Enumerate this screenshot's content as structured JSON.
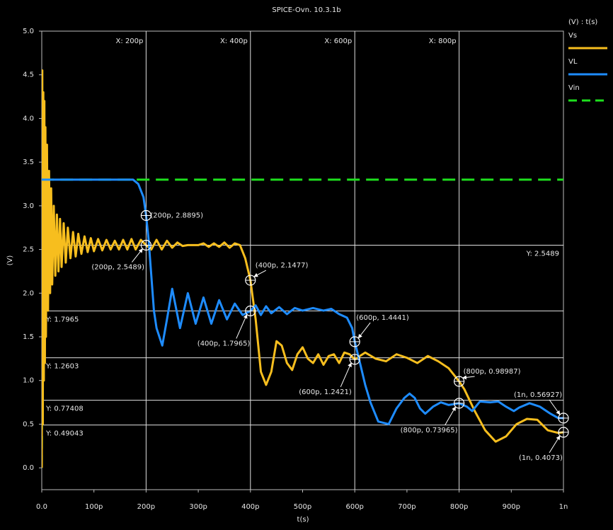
{
  "chart_data": {
    "type": "line",
    "title": "SPICE-Ovn. 10.3.1b",
    "x_label": "t(s)",
    "y_label": "(V)",
    "legend_title": "(V) : t(s)",
    "legend": "right",
    "xlim": [
      0,
      1e-09
    ],
    "ylim": [
      -0.25,
      5.0
    ],
    "xticks": [
      {
        "value": 0,
        "label": "0.0"
      },
      {
        "value": 1e-10,
        "label": "100p"
      },
      {
        "value": 2e-10,
        "label": "200p"
      },
      {
        "value": 3e-10,
        "label": "300p"
      },
      {
        "value": 4e-10,
        "label": "400p"
      },
      {
        "value": 5e-10,
        "label": "500p"
      },
      {
        "value": 6e-10,
        "label": "600p"
      },
      {
        "value": 7e-10,
        "label": "700p"
      },
      {
        "value": 8e-10,
        "label": "800p"
      },
      {
        "value": 9e-10,
        "label": "900p"
      },
      {
        "value": 1e-09,
        "label": "1n"
      }
    ],
    "yticks": [
      {
        "value": 0,
        "label": "0.0"
      },
      0.5,
      {
        "value": 1,
        "label": "1.0"
      },
      1.5,
      {
        "value": 2,
        "label": "2.0"
      },
      2.5,
      {
        "value": 3,
        "label": "3.0"
      },
      3.5,
      {
        "value": 4,
        "label": "4.0"
      },
      4.5,
      {
        "value": 5,
        "label": "5.0"
      }
    ],
    "x_cursors": [
      {
        "value": 2e-10,
        "label": "X: 200p"
      },
      {
        "value": 4e-10,
        "label": "X: 400p"
      },
      {
        "value": 6e-10,
        "label": "X: 600p"
      },
      {
        "value": 8e-10,
        "label": "X: 800p"
      }
    ],
    "y_cursors": [
      {
        "value": 2.5489,
        "label": "Y: 2.5489"
      },
      {
        "value": 1.7965,
        "label": "Y: 1.7965"
      },
      {
        "value": 1.2603,
        "label": "Y: 1.2603"
      },
      {
        "value": 0.77408,
        "label": "Y: 0.77408"
      },
      {
        "value": 0.49043,
        "label": "Y: 0.49043"
      }
    ],
    "series": [
      {
        "name": "Vs",
        "color": "#f7be1e",
        "dash": false,
        "x": [
          0,
          1e-12,
          2e-12,
          3e-12,
          4e-12,
          5e-12,
          6e-12,
          7e-12,
          8e-12,
          1e-11,
          1.2e-11,
          1.4e-11,
          1.6e-11,
          1.8e-11,
          2e-11,
          2.3e-11,
          2.6e-11,
          2.9e-11,
          3.2e-11,
          3.5e-11,
          3.8e-11,
          4.2e-11,
          4.6e-11,
          5e-11,
          5.5e-11,
          6e-11,
          6.5e-11,
          7e-11,
          7.6e-11,
          8.2e-11,
          8.8e-11,
          9.4e-11,
          1e-10,
          1.08e-10,
          1.16e-10,
          1.24e-10,
          1.32e-10,
          1.4e-10,
          1.48e-10,
          1.56e-10,
          1.64e-10,
          1.72e-10,
          1.8e-10,
          1.9e-10,
          2e-10,
          2.1e-10,
          2.2e-10,
          2.3e-10,
          2.4e-10,
          2.5e-10,
          2.6e-10,
          2.7e-10,
          2.8e-10,
          3e-10,
          3.1e-10,
          3.2e-10,
          3.3e-10,
          3.4e-10,
          3.5e-10,
          3.6e-10,
          3.7e-10,
          3.8e-10,
          3.9e-10,
          4e-10,
          4.1e-10,
          4.2e-10,
          4.3e-10,
          4.4e-10,
          4.5e-10,
          4.6e-10,
          4.7e-10,
          4.8e-10,
          4.9e-10,
          5e-10,
          5.1e-10,
          5.2e-10,
          5.3e-10,
          5.4e-10,
          5.5e-10,
          5.6e-10,
          5.7e-10,
          5.8e-10,
          5.9e-10,
          6e-10,
          6.2e-10,
          6.4e-10,
          6.6e-10,
          6.8e-10,
          7e-10,
          7.2e-10,
          7.4e-10,
          7.6e-10,
          7.8e-10,
          8e-10,
          8.1e-10,
          8.3e-10,
          8.5e-10,
          8.7e-10,
          8.9e-10,
          9.1e-10,
          9.3e-10,
          9.5e-10,
          9.7e-10,
          9.9e-10,
          1e-09
        ],
        "values": [
          0,
          4.55,
          0.5,
          4.3,
          1.0,
          4.2,
          1.2,
          3.9,
          1.5,
          3.7,
          1.8,
          3.4,
          2.0,
          3.2,
          2.1,
          3.0,
          2.2,
          2.9,
          2.25,
          2.85,
          2.3,
          2.8,
          2.35,
          2.75,
          2.4,
          2.7,
          2.42,
          2.68,
          2.45,
          2.65,
          2.47,
          2.63,
          2.48,
          2.62,
          2.49,
          2.61,
          2.5,
          2.6,
          2.5,
          2.61,
          2.5,
          2.62,
          2.5,
          2.61,
          2.5489,
          2.5,
          2.61,
          2.5,
          2.6,
          2.52,
          2.58,
          2.54,
          2.55,
          2.55,
          2.57,
          2.53,
          2.57,
          2.53,
          2.58,
          2.52,
          2.57,
          2.55,
          2.4,
          2.1477,
          1.7,
          1.1,
          0.95,
          1.1,
          1.45,
          1.4,
          1.2,
          1.12,
          1.3,
          1.38,
          1.25,
          1.2,
          1.3,
          1.18,
          1.28,
          1.3,
          1.2,
          1.32,
          1.3,
          1.2421,
          1.32,
          1.25,
          1.22,
          1.3,
          1.26,
          1.2,
          1.28,
          1.22,
          1.14,
          0.98987,
          0.9,
          0.65,
          0.43,
          0.3,
          0.36,
          0.5,
          0.56,
          0.55,
          0.43,
          0.4,
          0.4073
        ]
      },
      {
        "name": "VL",
        "color": "#1e8cff",
        "dash": false,
        "x": [
          0,
          1.75e-10,
          1.85e-10,
          1.95e-10,
          2e-10,
          2.05e-10,
          2.1e-10,
          2.15e-10,
          2.2e-10,
          2.31e-10,
          2.4e-10,
          2.5e-10,
          2.65e-10,
          2.8e-10,
          2.95e-10,
          3.1e-10,
          3.25e-10,
          3.4e-10,
          3.55e-10,
          3.7e-10,
          3.85e-10,
          4e-10,
          4.1e-10,
          4.2e-10,
          4.3e-10,
          4.4e-10,
          4.55e-10,
          4.7e-10,
          4.85e-10,
          5e-10,
          5.2e-10,
          5.4e-10,
          5.55e-10,
          5.7e-10,
          5.85e-10,
          5.95e-10,
          6e-10,
          6.1e-10,
          6.2e-10,
          6.3e-10,
          6.45e-10,
          6.65e-10,
          6.8e-10,
          6.95e-10,
          7.05e-10,
          7.15e-10,
          7.25e-10,
          7.35e-10,
          7.5e-10,
          7.65e-10,
          7.8e-10,
          8e-10,
          8.15e-10,
          8.25e-10,
          8.4e-10,
          8.6e-10,
          8.75e-10,
          8.9e-10,
          9.05e-10,
          9.15e-10,
          9.35e-10,
          9.55e-10,
          9.75e-10,
          9.9e-10,
          1e-09
        ],
        "values": [
          3.3,
          3.3,
          3.25,
          3.1,
          2.8895,
          2.6,
          2.2,
          1.8,
          1.6,
          1.4,
          1.7,
          2.05,
          1.6,
          2.0,
          1.65,
          1.95,
          1.65,
          1.92,
          1.7,
          1.88,
          1.75,
          1.7965,
          1.86,
          1.75,
          1.85,
          1.77,
          1.84,
          1.76,
          1.83,
          1.8,
          1.83,
          1.8,
          1.82,
          1.76,
          1.72,
          1.6,
          1.4441,
          1.2,
          0.95,
          0.75,
          0.53,
          0.5,
          0.68,
          0.8,
          0.85,
          0.8,
          0.68,
          0.62,
          0.7,
          0.75,
          0.72,
          0.73965,
          0.7,
          0.65,
          0.76,
          0.75,
          0.76,
          0.7,
          0.65,
          0.69,
          0.74,
          0.7,
          0.62,
          0.57,
          0.56927
        ]
      },
      {
        "name": "Vin",
        "color": "#1ee01e",
        "dash": true,
        "x": [
          0,
          2e-12,
          1e-09
        ],
        "values": [
          0,
          3.3,
          3.3
        ]
      }
    ],
    "annotations": [
      {
        "label": "(200p, 2.8895)"
      },
      {
        "label": "(200p, 2.5489)"
      },
      {
        "label": "(400p, 2.1477)"
      },
      {
        "label": "(400p, 1.7965)"
      },
      {
        "label": "(600p, 1.4441)"
      },
      {
        "label": "(600p, 1.2421)"
      },
      {
        "label": "(800p, 0.98987)"
      },
      {
        "label": "(800p, 0.73965)"
      },
      {
        "label": "(1n, 0.56927)"
      },
      {
        "label": "(1n, 0.4073)"
      }
    ]
  }
}
